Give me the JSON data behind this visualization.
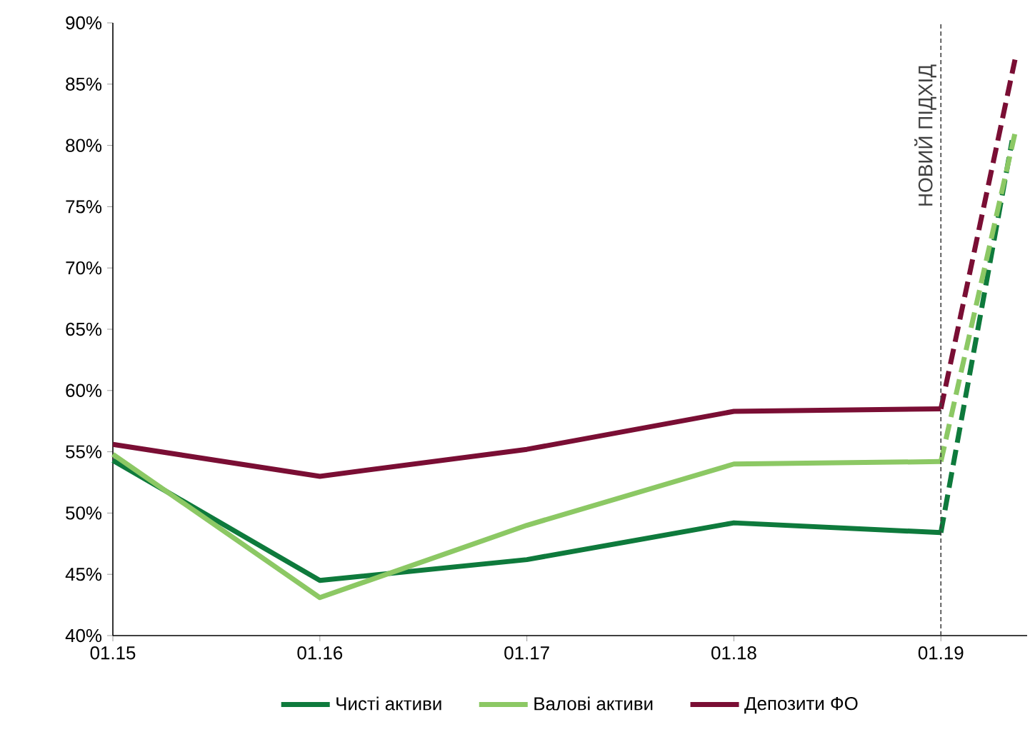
{
  "chart_data": {
    "type": "line",
    "xlim": [
      "2015-01",
      "2019-06"
    ],
    "ylim": [
      40,
      90
    ],
    "xticks": [
      {
        "value": "2015-01",
        "label": "01.15"
      },
      {
        "value": "2016-01",
        "label": "01.16"
      },
      {
        "value": "2017-01",
        "label": "01.17"
      },
      {
        "value": "2018-01",
        "label": "01.18"
      },
      {
        "value": "2019-01",
        "label": "01.19"
      }
    ],
    "yticks": [
      {
        "value": 40,
        "label": "40%"
      },
      {
        "value": 45,
        "label": "45%"
      },
      {
        "value": 50,
        "label": "50%"
      },
      {
        "value": 55,
        "label": "55%"
      },
      {
        "value": 60,
        "label": "60%"
      },
      {
        "value": 65,
        "label": "65%"
      },
      {
        "value": 70,
        "label": "70%"
      },
      {
        "value": 75,
        "label": "75%"
      },
      {
        "value": 80,
        "label": "80%"
      },
      {
        "value": 85,
        "label": "85%"
      },
      {
        "value": 90,
        "label": "90%"
      }
    ],
    "series": [
      {
        "name": "Чисті активи",
        "color": "#0e7a3c",
        "x": [
          "2015-01",
          "2016-01",
          "2017-01",
          "2018-01",
          "2019-01"
        ],
        "values": [
          54.3,
          44.5,
          46.2,
          49.2,
          48.4
        ]
      },
      {
        "name": "Валові активи",
        "color": "#8cc864",
        "x": [
          "2015-01",
          "2016-01",
          "2017-01",
          "2018-01",
          "2019-01"
        ],
        "values": [
          54.8,
          43.1,
          49.0,
          54.0,
          54.2
        ]
      },
      {
        "name": "Депозити ФО",
        "color": "#7a0e34",
        "x": [
          "2015-01",
          "2016-01",
          "2017-01",
          "2018-01",
          "2019-01"
        ],
        "values": [
          55.6,
          53.0,
          55.2,
          58.3,
          58.5
        ]
      },
      {
        "color": "#0e7a3c",
        "line_style": "dashed",
        "x": [
          "2019-01",
          "2019-05-05"
        ],
        "values": [
          48.4,
          80.4
        ]
      },
      {
        "color": "#8cc864",
        "line_style": "dashed",
        "x": [
          "2019-01",
          "2019-05-12"
        ],
        "values": [
          54.2,
          81.4
        ]
      },
      {
        "color": "#7a0e34",
        "line_style": "dashed",
        "x": [
          "2019-01",
          "2019-05-10"
        ],
        "values": [
          58.5,
          87.0
        ]
      }
    ],
    "ref_lines": [
      {
        "axis": "x",
        "value": "2019-01",
        "label": "НОВИЙ ПІДХІД",
        "color": "#404040",
        "line_style": "dashed"
      }
    ],
    "legend": "bottom"
  }
}
